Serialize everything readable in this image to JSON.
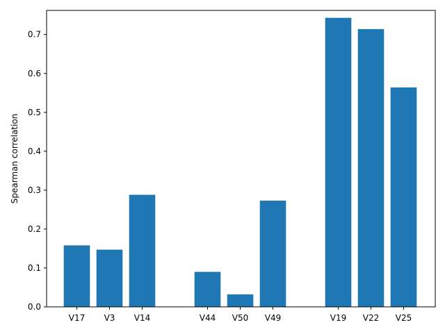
{
  "chart_data": {
    "type": "bar",
    "categories": [
      "V17",
      "V3",
      "V14",
      "V44",
      "V50",
      "V49",
      "V19",
      "V22",
      "V25"
    ],
    "values": [
      0.158,
      0.147,
      0.288,
      0.09,
      0.032,
      0.273,
      0.743,
      0.714,
      0.564
    ],
    "bar_color": "#1f77b4",
    "title": "",
    "xlabel": "",
    "ylabel": "Spearman correlation",
    "ylim": [
      0,
      0.762
    ],
    "yticks": [
      0.0,
      0.1,
      0.2,
      0.3,
      0.4,
      0.5,
      0.6,
      0.7
    ],
    "ytick_labels": [
      "0.0",
      "0.1",
      "0.2",
      "0.3",
      "0.4",
      "0.5",
      "0.6",
      "0.7"
    ],
    "groups": [
      [
        0,
        1,
        2
      ],
      [
        3,
        4,
        5
      ],
      [
        6,
        7,
        8
      ]
    ],
    "grid": false,
    "legend": "none"
  }
}
